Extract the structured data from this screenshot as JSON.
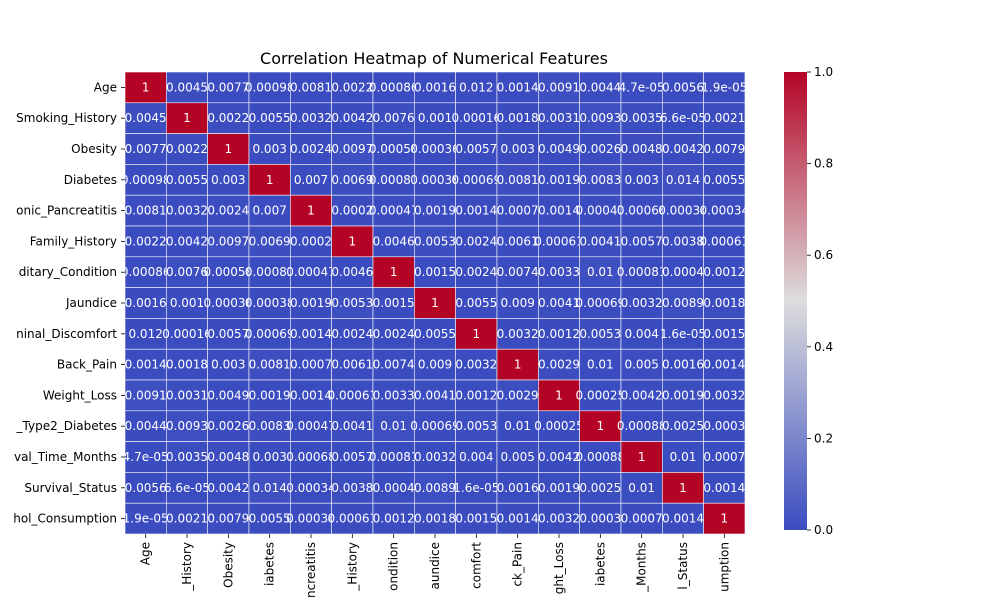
{
  "chart_data": {
    "type": "heatmap",
    "title": "Correlation Heatmap of Numerical Features",
    "row_labels": [
      "Age",
      "Smoking_History",
      "Obesity",
      "Diabetes",
      "onic_Pancreatitis",
      "Family_History",
      "ditary_Condition",
      "Jaundice",
      "ninal_Discomfort",
      "Back_Pain",
      "Weight_Loss",
      "_Type2_Diabetes",
      "val_Time_Months",
      "Survival_Status",
      "hol_Consumption"
    ],
    "col_labels": [
      "Age",
      "_History",
      "Obesity",
      "iabetes",
      "ncreatitis",
      "_History",
      "ondition",
      "aundice",
      "comfort",
      "ck_Pain",
      "ght_Loss",
      "iabetes",
      "_Months",
      "l_Status",
      "umption"
    ],
    "values": [
      [
        1,
        0.0045,
        -0.0077,
        -0.00098,
        -0.0081,
        -0.0022,
        -0.00086,
        -0.0016,
        -0.012,
        -0.0014,
        0.0091,
        -0.0044,
        -4.7e-05,
        -0.0056,
        -1.9e-05
      ],
      [
        0.0045,
        1,
        0.0022,
        -0.0055,
        -0.0032,
        -0.0042,
        0.0076,
        -0.001,
        -0.00016,
        -0.0018,
        0.0031,
        0.0093,
        0.0035,
        -6.6e-05,
        0.0021
      ],
      [
        -0.0077,
        0.0022,
        1,
        -0.003,
        -0.0024,
        0.0097,
        -0.00058,
        -0.00036,
        -0.0057,
        -0.003,
        -0.0049,
        -0.0026,
        0.0048,
        -0.0042,
        -0.0079
      ],
      [
        -0.00098,
        -0.0055,
        -0.003,
        1,
        -0.007,
        0.0069,
        -0.00081,
        -0.00038,
        -0.00069,
        0.0081,
        -0.0019,
        0.0083,
        -0.003,
        0.014,
        -0.0055
      ],
      [
        -0.0081,
        -0.0032,
        -0.0024,
        -0.007,
        1,
        -0.0002,
        0.00047,
        -0.0019,
        -0.0014,
        -0.0007,
        -0.0014,
        0.00047,
        0.00068,
        -0.00034,
        0.00034
      ],
      [
        -0.0022,
        -0.0042,
        0.0097,
        0.0069,
        -0.0002,
        1,
        -0.0046,
        0.0053,
        -0.0024,
        -0.0061,
        0.00061,
        0.0041,
        -0.0057,
        0.0038,
        -0.00061
      ],
      [
        -0.00086,
        0.0076,
        -0.00058,
        -0.00081,
        0.00047,
        -0.0046,
        1,
        -0.0015,
        -0.0024,
        -0.0074,
        -0.0033,
        0.01,
        0.00081,
        -0.0004,
        0.0012
      ],
      [
        -0.0016,
        -0.001,
        -0.00036,
        -0.00038,
        -0.0019,
        0.0053,
        -0.0015,
        1,
        -0.0055,
        -0.009,
        0.0041,
        -0.00069,
        -0.0032,
        0.0089,
        0.0018
      ],
      [
        -0.012,
        -0.00016,
        -0.0057,
        -0.00069,
        -0.0014,
        -0.0024,
        -0.0024,
        -0.0055,
        1,
        -0.0032,
        0.0012,
        0.0053,
        -0.004,
        -1.6e-05,
        -0.0015
      ],
      [
        -0.0014,
        -0.0018,
        -0.003,
        0.0081,
        -0.0007,
        -0.0061,
        -0.0074,
        -0.009,
        -0.0032,
        1,
        0.0029,
        -0.01,
        0.005,
        -0.0016,
        0.0014
      ],
      [
        0.0091,
        0.0031,
        -0.0049,
        -0.0019,
        -0.0014,
        0.00061,
        -0.0033,
        0.0041,
        0.0012,
        0.0029,
        1,
        0.00025,
        -0.0042,
        0.0019,
        -0.0032
      ],
      [
        -0.0044,
        0.0093,
        -0.0026,
        0.0083,
        0.00047,
        0.0041,
        0.01,
        -0.00069,
        0.0053,
        -0.01,
        0.00025,
        1,
        0.00088,
        0.0025,
        -0.0003
      ],
      [
        -4.7e-05,
        0.0035,
        0.0048,
        -0.003,
        0.00068,
        -0.0057,
        0.00081,
        -0.0032,
        -0.004,
        0.005,
        -0.0042,
        0.00088,
        1,
        -0.01,
        -0.0007
      ],
      [
        -0.0056,
        -6.6e-05,
        -0.0042,
        0.014,
        -0.00034,
        0.0038,
        -0.0004,
        0.0089,
        -1.6e-05,
        -0.0016,
        0.0019,
        0.0025,
        -0.01,
        1,
        -0.0014
      ],
      [
        -1.9e-05,
        0.0021,
        -0.0079,
        -0.0055,
        0.00034,
        -0.00061,
        0.0012,
        0.0018,
        -0.0015,
        0.0014,
        -0.0032,
        -0.0003,
        -0.0007,
        -0.0014,
        1
      ]
    ],
    "cell_text": [
      [
        "1",
        "0.0045",
        "0.0077",
        "0.00098",
        "0.0081",
        "0.0022",
        "0.00086",
        "0.0016",
        "0.012",
        "0.0014",
        "0.0091",
        "0.0044",
        "4.7e-05",
        "0.0056",
        "1.9e-05"
      ],
      [
        "0.0045",
        "1",
        "0.0022",
        "0.0055",
        "0.0032",
        "0.0042",
        "0.0076",
        "0.001",
        "0.00016",
        "0.0018",
        "0.0031",
        "0.0093",
        "0.0035",
        "6.6e-05",
        "0.0021"
      ],
      [
        "0.0077",
        "0.0022",
        "1",
        "0.003",
        "0.0024",
        "0.0097",
        "0.00058",
        "0.00036",
        "0.0057",
        "0.003",
        "0.0049",
        "0.0026",
        "0.0048",
        "0.0042",
        "0.0079"
      ],
      [
        "0.00098",
        "0.0055",
        "0.003",
        "1",
        "0.007",
        "0.0069",
        "0.00081",
        "0.00038",
        "0.00069",
        "0.0081",
        "0.0019",
        "0.0083",
        "0.003",
        "0.014",
        "0.0055"
      ],
      [
        "0.0081",
        "0.0032",
        "0.0024",
        "0.007",
        "1",
        "0.0002",
        "0.00047",
        "0.0019",
        "0.0014",
        "0.0007",
        "0.0014",
        "0.00047",
        "0.00068",
        "0.00034",
        "0.00034"
      ],
      [
        "0.0022",
        "0.0042",
        "0.0097",
        "0.0069",
        "0.0002",
        "1",
        "0.0046",
        "0.0053",
        "0.0024",
        "0.0061",
        "0.00061",
        "0.0041",
        "0.0057",
        "0.0038",
        "0.00061"
      ],
      [
        "0.00086",
        "0.0076",
        "0.00058",
        "0.00081",
        "0.00047",
        "0.0046",
        "1",
        "0.0015",
        "0.0024",
        "0.0074",
        "0.0033",
        "0.01",
        "0.00081",
        "0.0004",
        "0.0012"
      ],
      [
        "0.0016",
        "0.001",
        "0.00036",
        "0.00038",
        "0.0019",
        "0.0053",
        "0.0015",
        "1",
        "0.0055",
        "0.009",
        "0.0041",
        "0.00069",
        "0.0032",
        "0.0089",
        "0.0018"
      ],
      [
        "0.012",
        "0.00016",
        "0.0057",
        "0.00069",
        "0.0014",
        "0.0024",
        "0.0024",
        "0.0055",
        "1",
        "0.0032",
        "0.0012",
        "0.0053",
        "0.004",
        "1.6e-05",
        "0.0015"
      ],
      [
        "0.0014",
        "0.0018",
        "0.003",
        "0.0081",
        "0.0007",
        "0.0061",
        "0.0074",
        "0.009",
        "0.0032",
        "1",
        "0.0029",
        "0.01",
        "0.005",
        "0.0016",
        "0.0014"
      ],
      [
        "0.0091",
        "0.0031",
        "0.0049",
        "0.0019",
        "0.0014",
        "0.00061",
        "0.0033",
        "0.0041",
        "0.0012",
        "0.0029",
        "1",
        "0.00025",
        "0.0042",
        "0.0019",
        "0.0032"
      ],
      [
        "0.0044",
        "0.0093",
        "0.0026",
        "0.0083",
        "0.00047",
        "0.0041",
        "0.01",
        "0.00069",
        "0.0053",
        "0.01",
        "0.00025",
        "1",
        "0.00088",
        "0.0025",
        "0.0003"
      ],
      [
        "4.7e-05",
        "0.0035",
        "0.0048",
        "0.003",
        "0.00068",
        "0.0057",
        "0.00081",
        "0.0032",
        "0.004",
        "0.005",
        "0.0042",
        "0.00088",
        "1",
        "0.01",
        "0.0007"
      ],
      [
        "0.0056",
        "6.6e-05",
        "0.0042",
        "0.014",
        "0.00034",
        "0.0038",
        "0.0004",
        "0.0089",
        "1.6e-05",
        "0.0016",
        "0.0019",
        "0.0025",
        "0.01",
        "1",
        "0.0014"
      ],
      [
        "1.9e-05",
        "0.0021",
        "0.0079",
        "0.0055",
        "0.00034",
        "0.00061",
        "0.0012",
        "0.0018",
        "0.0015",
        "0.0014",
        "0.0032",
        "0.0003",
        "0.0007",
        "0.0014",
        "1"
      ]
    ],
    "colorbar": {
      "min": 0,
      "max": 1,
      "ticks": [
        "0.0",
        "0.2",
        "0.4",
        "0.6",
        "0.8",
        "1.0"
      ]
    },
    "colormap": {
      "low": "#3b4cc0",
      "mid": "#dddddd",
      "high": "#b40426"
    }
  }
}
